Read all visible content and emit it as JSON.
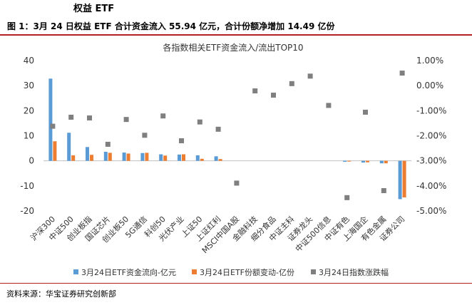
{
  "section_title": "权益 ETF",
  "figure_title": "图 1：3月 24 日权益 ETF 合计资金流入 55.94 亿元，合计份额净增加 14.49 亿份",
  "source": "资料来源：华宝证券研究创新部",
  "colors": {
    "accent": "#b22020",
    "flow": "#5b9bd5",
    "share": "#ed7d31",
    "pct": "#7f7f7f"
  },
  "chart_data": {
    "type": "bar",
    "title": "各指数相关ETF资金流入/流出TOP10",
    "categories": [
      "沪深300",
      "中证500",
      "创业板指",
      "国证芯片",
      "创业板50",
      "5G通信",
      "科创50",
      "光伏产业",
      "上证50",
      "上证红利",
      "MSCI中国A股",
      "金融科技",
      "细分食品",
      "中证主科",
      "证券龙头",
      "中证500信息",
      "中证有色",
      "上海国企",
      "有色金属",
      "证券公司"
    ],
    "series": [
      {
        "name": "3月24日ETF资金流向-亿元",
        "axis": "left",
        "kind": "bar",
        "values": [
          32.8,
          11.2,
          5.5,
          3.6,
          3.3,
          3.1,
          2.6,
          2.5,
          2.2,
          1.8,
          0,
          0,
          0,
          0,
          0,
          0,
          -0.4,
          -0.7,
          -1.0,
          -15.3
        ]
      },
      {
        "name": "3月24日ETF份额变动-亿份",
        "axis": "left",
        "kind": "bar",
        "values": [
          7.8,
          2.2,
          2.4,
          3.2,
          2.9,
          3.2,
          2.1,
          2.6,
          0.8,
          0.7,
          0,
          0,
          0,
          0,
          0,
          0,
          -0.3,
          -0.6,
          -1.0,
          -14.6
        ]
      },
      {
        "name": "3月24日指数涨跌幅",
        "axis": "right",
        "kind": "marker",
        "values": [
          -1.62,
          -1.26,
          -1.29,
          -2.34,
          -1.35,
          -1.98,
          -1.21,
          -2.2,
          -1.45,
          -1.74,
          -3.89,
          -0.21,
          -0.38,
          0.08,
          0.38,
          -0.79,
          -4.47,
          -1.06,
          -4.19,
          0.5
        ]
      }
    ],
    "yleft": {
      "min": -20,
      "max": 40,
      "ticks": [
        "40",
        "30",
        "20",
        "10",
        "0",
        "-10",
        "-20"
      ]
    },
    "yright": {
      "min": -5,
      "max": 1,
      "ticks": [
        "1.00%",
        "0.00%",
        "-1.00%",
        "-2.00%",
        "-3.00%",
        "-4.00%",
        "-5.00%"
      ]
    },
    "legend_position": "bottom"
  }
}
